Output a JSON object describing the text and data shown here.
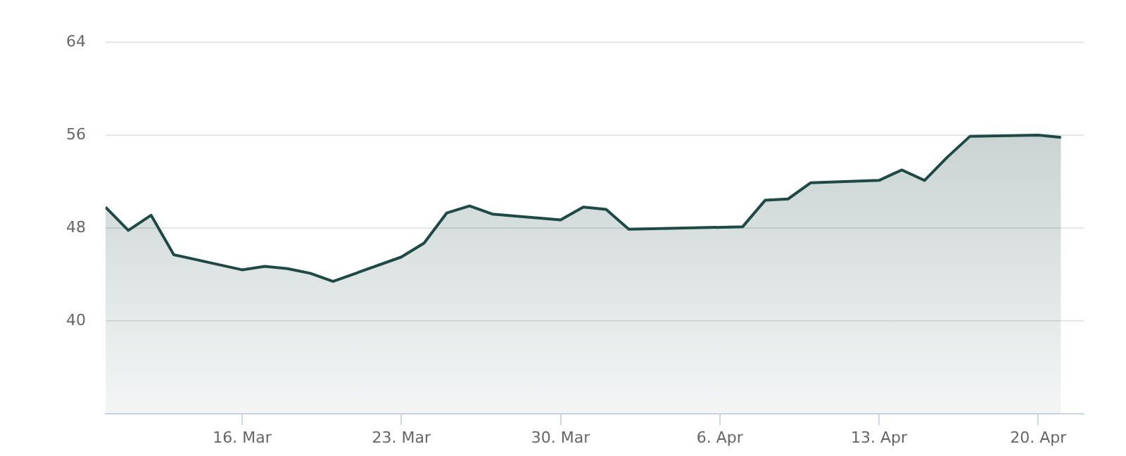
{
  "chart_data": {
    "type": "area",
    "x": [
      "--03-10",
      "--03-11",
      "--03-12",
      "--03-13",
      "--03-16",
      "--03-17",
      "--03-18",
      "--03-19",
      "--03-20",
      "--03-23",
      "--03-24",
      "--03-25",
      "--03-26",
      "--03-27",
      "--03-30",
      "--03-31",
      "--04-01",
      "--04-02",
      "--04-07",
      "--04-08",
      "--04-09",
      "--04-10",
      "--04-13",
      "--04-14",
      "--04-15",
      "--04-16",
      "--04-17",
      "--04-20",
      "--04-21"
    ],
    "series": [
      {
        "color": "#1d4a45",
        "values": [
          49.8,
          47.8,
          49.1,
          45.7,
          44.4,
          44.7,
          44.5,
          44.1,
          43.4,
          45.5,
          46.7,
          49.3,
          49.9,
          49.2,
          48.7,
          49.8,
          49.6,
          47.9,
          48.1,
          50.4,
          50.5,
          51.9,
          52.1,
          53.0,
          52.1,
          54.1,
          55.9,
          56.0,
          55.8
        ]
      }
    ],
    "xlim": [
      "--03-10",
      "--04-22"
    ],
    "xticks": [
      {
        "value": "--03-16",
        "label": "16. Mar"
      },
      {
        "value": "--03-23",
        "label": "23. Mar"
      },
      {
        "value": "--03-30",
        "label": "30. Mar"
      },
      {
        "value": "--04-06",
        "label": "6. Apr"
      },
      {
        "value": "--04-13",
        "label": "13. Apr"
      },
      {
        "value": "--04-20",
        "label": "20. Apr"
      }
    ],
    "ylim": [
      32,
      64
    ],
    "yticks": [
      40,
      48,
      56,
      64
    ],
    "grid": "y",
    "legend": false,
    "marker": "none",
    "line_style": "solid"
  }
}
